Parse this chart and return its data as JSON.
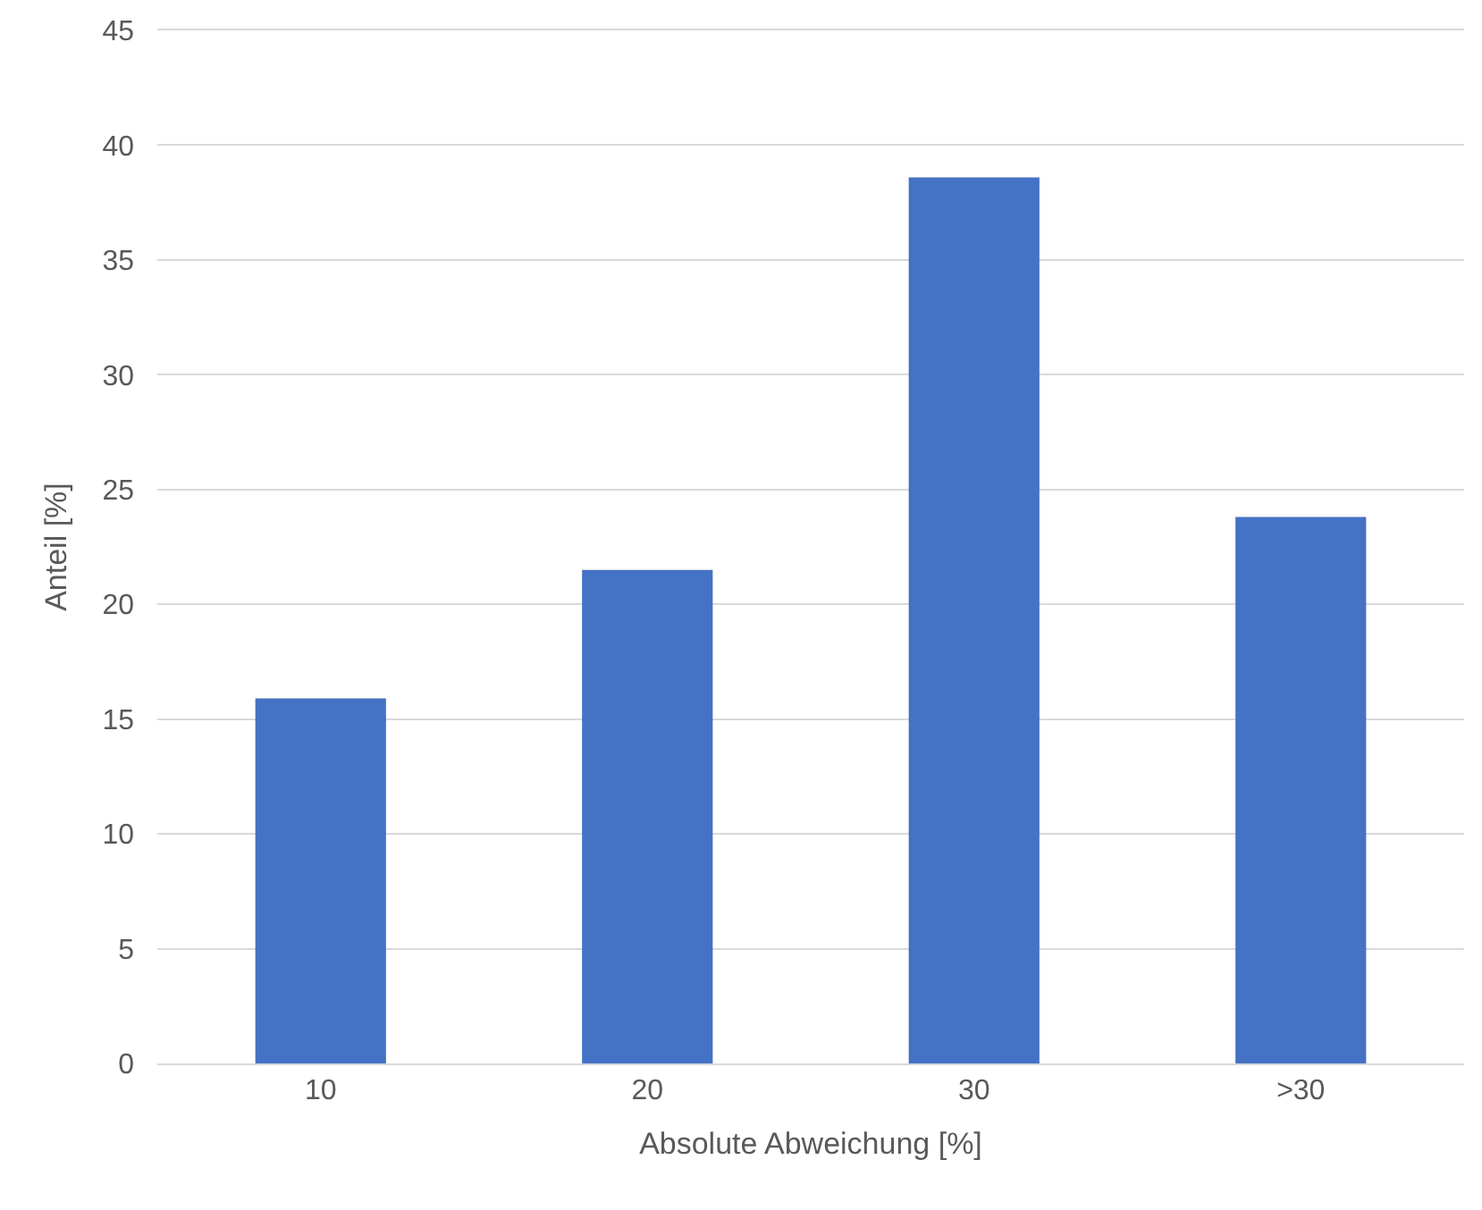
{
  "chart_data": {
    "type": "bar",
    "xlabel": "Absolute Abweichung [%]",
    "ylabel": "Anteil [%]",
    "categories": [
      "10",
      "20",
      "30",
      ">30"
    ],
    "values": [
      15.9,
      21.5,
      38.6,
      23.8
    ],
    "color": "#4472c4",
    "ylim": [
      0,
      45
    ],
    "yticks": [
      0,
      5,
      10,
      15,
      20,
      25,
      30,
      35,
      40,
      45
    ],
    "grid": "y"
  }
}
